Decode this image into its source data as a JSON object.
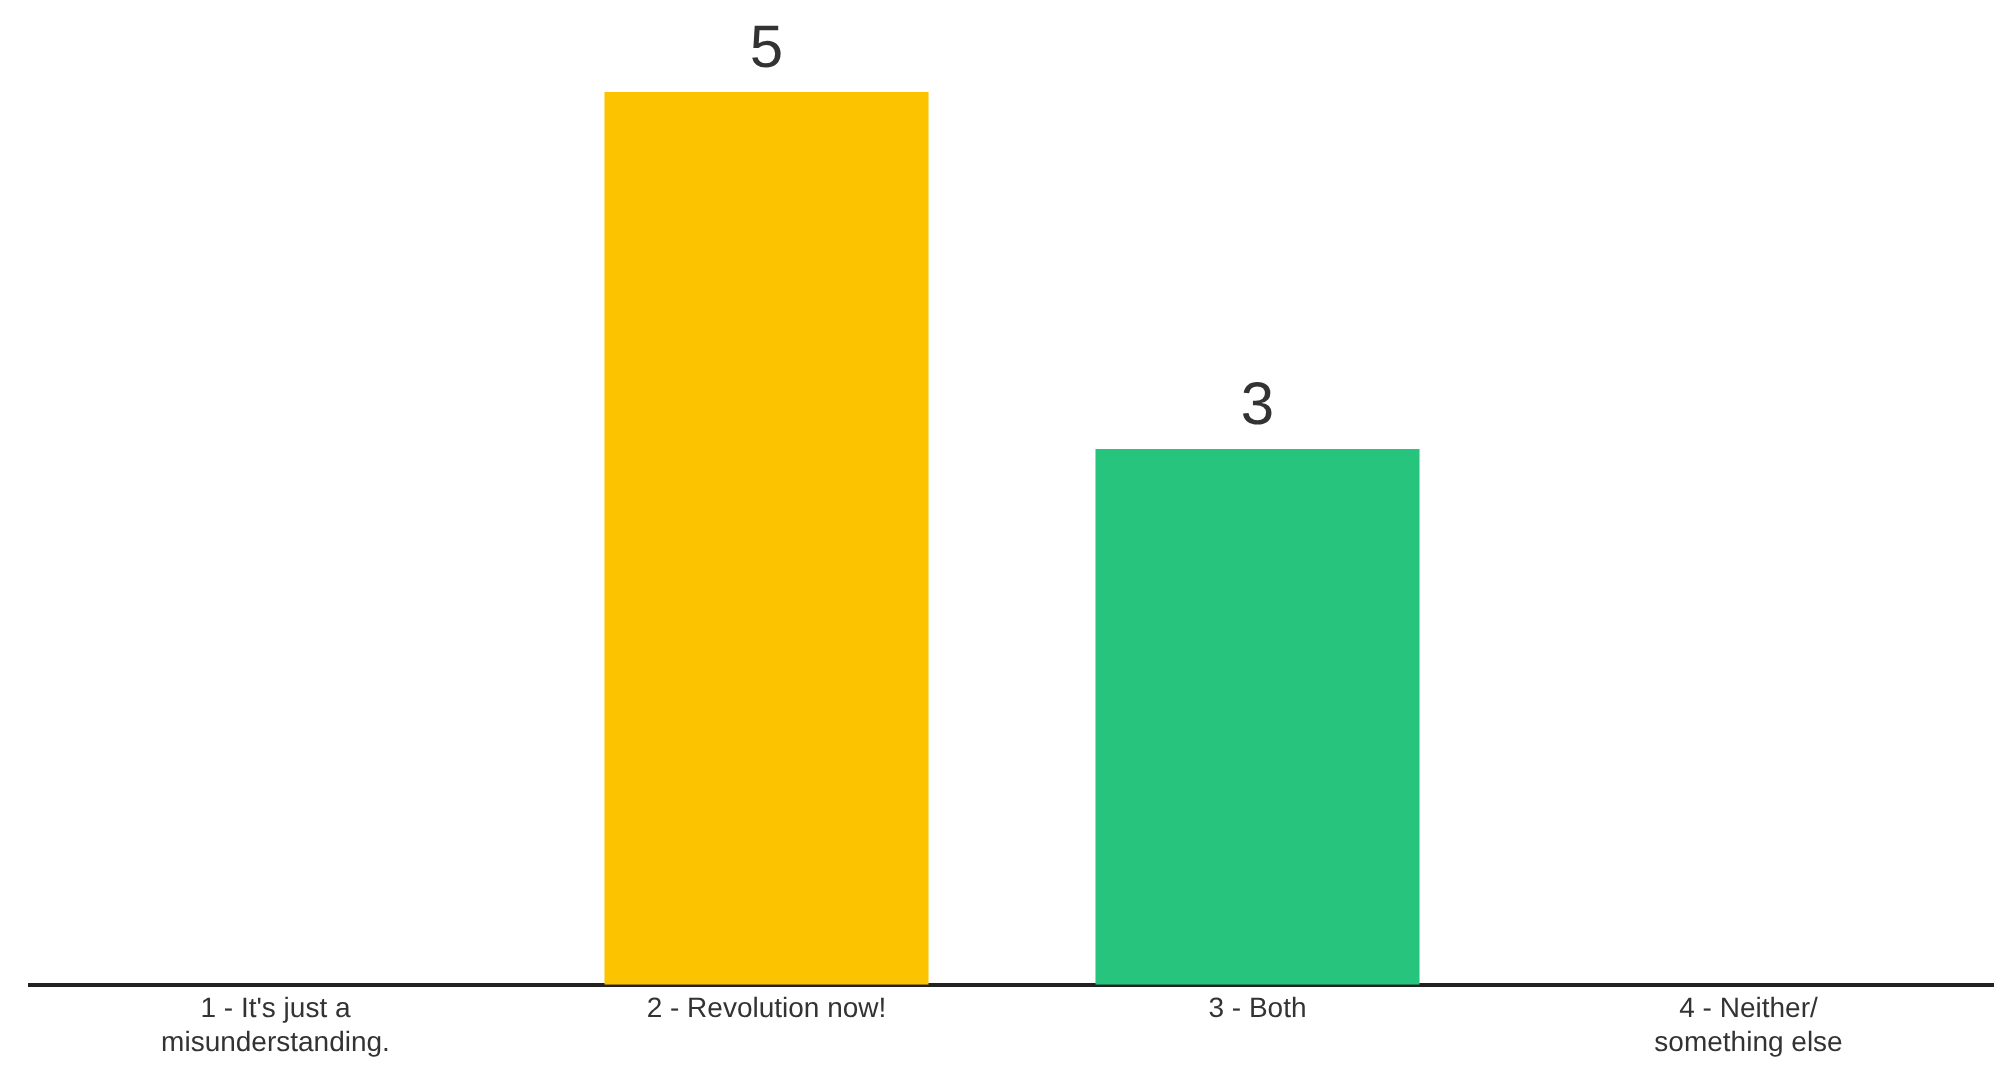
{
  "chart_data": {
    "type": "bar",
    "categories": [
      "1 - It's just a misunderstanding.",
      "2 - Revolution now!",
      "3 - Both",
      "4 - Neither/ something else"
    ],
    "values": [
      0,
      5,
      3,
      0
    ],
    "colors": [
      "#5b7cfa",
      "#fcc300",
      "#27c47d",
      "#f25a5a"
    ],
    "value_labels": [
      null,
      "5",
      "3",
      null
    ],
    "grid": false,
    "legend": false
  }
}
